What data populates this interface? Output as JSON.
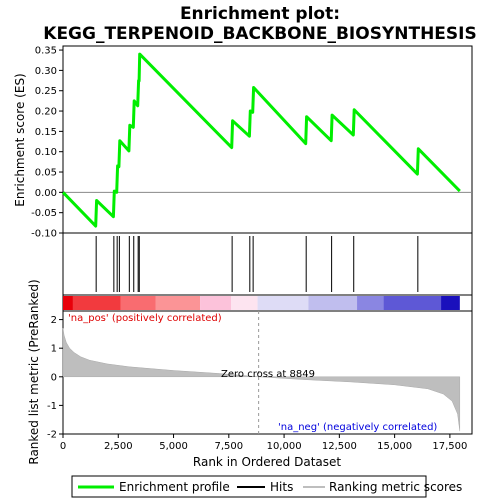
{
  "chart_data": {
    "type": "line",
    "title_line1": "Enrichment plot:",
    "title_line2": "KEGG_TERPENOID_BACKBONE_BIOSYNTHESIS",
    "ylabel_top": "Enrichment score (ES)",
    "ylabel_bottom": "Ranked list metric (PreRanked)",
    "xlabel": "Rank in Ordered Dataset",
    "xlim": [
      0,
      18500
    ],
    "ylim_es": [
      -0.1,
      0.36
    ],
    "ylim_metric": [
      -2,
      2.3
    ],
    "x_ticks": [
      "0",
      "2,500",
      "5,000",
      "7,500",
      "10,000",
      "12,500",
      "15,000",
      "17,500"
    ],
    "x_tick_values": [
      0,
      2500,
      5000,
      7500,
      10000,
      12500,
      15000,
      17500
    ],
    "es_ticks": [
      "-0.10",
      "-0.05",
      "0.00",
      "0.05",
      "0.10",
      "0.15",
      "0.20",
      "0.25",
      "0.30",
      "0.35"
    ],
    "es_tick_values": [
      -0.1,
      -0.05,
      0,
      0.05,
      0.1,
      0.15,
      0.2,
      0.25,
      0.3,
      0.35
    ],
    "metric_ticks": [
      "-2",
      "-1",
      "0",
      "1",
      "2"
    ],
    "metric_tick_values": [
      -2,
      -1,
      0,
      1,
      2
    ],
    "n_genes": 17950,
    "zero_cross": 8849,
    "zero_cross_label": "Zero cross at 8849",
    "pos_label": "'na_pos' (positively correlated)",
    "neg_label": "'na_neg' (negatively correlated)",
    "hits": [
      1500,
      2300,
      2450,
      2550,
      3000,
      3200,
      3400,
      3450,
      7650,
      8450,
      8600,
      11000,
      12150,
      13150,
      16050
    ],
    "es_curve": [
      [
        0,
        0.0
      ],
      [
        1480,
        -0.083
      ],
      [
        1520,
        -0.02
      ],
      [
        2280,
        -0.06
      ],
      [
        2320,
        0.003
      ],
      [
        2430,
        0.0
      ],
      [
        2470,
        0.065
      ],
      [
        2530,
        0.063
      ],
      [
        2570,
        0.127
      ],
      [
        2980,
        0.102
      ],
      [
        3020,
        0.165
      ],
      [
        3180,
        0.16
      ],
      [
        3220,
        0.225
      ],
      [
        3380,
        0.213
      ],
      [
        3420,
        0.275
      ],
      [
        3440,
        0.274
      ],
      [
        3470,
        0.34
      ],
      [
        7630,
        0.11
      ],
      [
        7670,
        0.176
      ],
      [
        8430,
        0.138
      ],
      [
        8470,
        0.2
      ],
      [
        8580,
        0.197
      ],
      [
        8620,
        0.258
      ],
      [
        10980,
        0.12
      ],
      [
        11020,
        0.186
      ],
      [
        12130,
        0.127
      ],
      [
        12170,
        0.19
      ],
      [
        13130,
        0.141
      ],
      [
        13170,
        0.203
      ],
      [
        16030,
        0.045
      ],
      [
        16070,
        0.107
      ],
      [
        17950,
        0.003
      ]
    ],
    "metric_curve": [
      [
        0,
        1.7
      ],
      [
        50,
        1.45
      ],
      [
        150,
        1.2
      ],
      [
        300,
        1.0
      ],
      [
        500,
        0.85
      ],
      [
        800,
        0.7
      ],
      [
        1200,
        0.58
      ],
      [
        2000,
        0.45
      ],
      [
        3000,
        0.35
      ],
      [
        5000,
        0.22
      ],
      [
        7000,
        0.12
      ],
      [
        8849,
        0.0
      ],
      [
        11000,
        -0.1
      ],
      [
        13000,
        -0.18
      ],
      [
        15000,
        -0.28
      ],
      [
        16500,
        -0.42
      ],
      [
        17200,
        -0.6
      ],
      [
        17600,
        -0.85
      ],
      [
        17850,
        -1.3
      ],
      [
        17950,
        -1.9
      ]
    ],
    "color_bar": [
      {
        "from": 0,
        "to": 450,
        "color": "#e8000a"
      },
      {
        "from": 450,
        "to": 2600,
        "color": "#f23a3e"
      },
      {
        "from": 2600,
        "to": 4200,
        "color": "#f96c70"
      },
      {
        "from": 4200,
        "to": 6200,
        "color": "#fb9496"
      },
      {
        "from": 6200,
        "to": 7600,
        "color": "#fcc2da"
      },
      {
        "from": 7600,
        "to": 8800,
        "color": "#fde4f0"
      },
      {
        "from": 8800,
        "to": 11100,
        "color": "#dedcf6"
      },
      {
        "from": 11100,
        "to": 13300,
        "color": "#c0beee"
      },
      {
        "from": 13300,
        "to": 14500,
        "color": "#8a86e2"
      },
      {
        "from": 14500,
        "to": 17100,
        "color": "#5e58d6"
      },
      {
        "from": 17100,
        "to": 17950,
        "color": "#1a10bc"
      }
    ],
    "colors": {
      "es_line": "#00ee00",
      "hit": "#000000",
      "metric_fill": "#bebebe",
      "pos_text": "#dd0000",
      "neg_text": "#0000dd",
      "zero_line": "#999999"
    }
  },
  "legend": {
    "items": [
      {
        "label": "Enrichment profile",
        "icon": "green-line"
      },
      {
        "label": "Hits",
        "icon": "black-line"
      },
      {
        "label": "Ranking metric scores",
        "icon": "gray-line"
      }
    ]
  }
}
